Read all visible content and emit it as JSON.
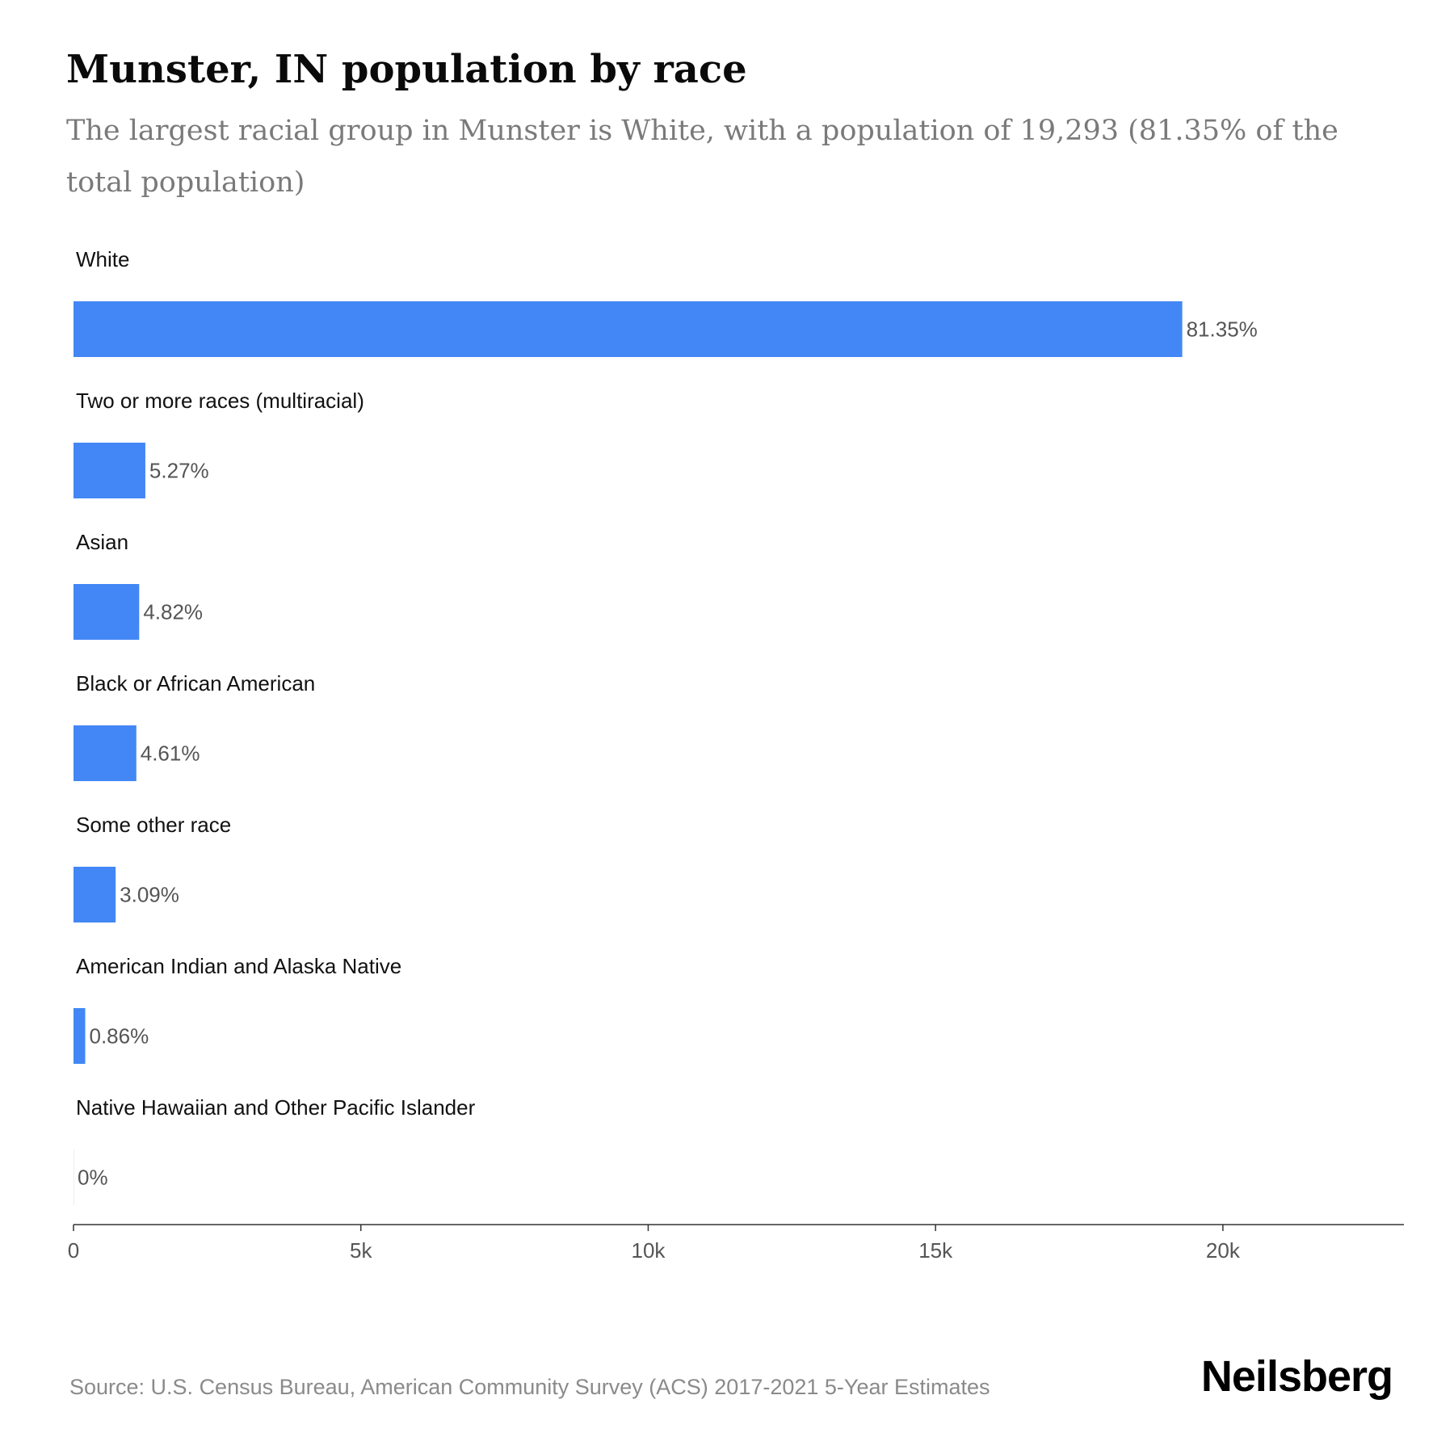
{
  "header": {
    "title": "Munster, IN population by race",
    "subtitle": "The largest racial group in Munster is White, with a population of 19,293 (81.35% of the total population)"
  },
  "footer": {
    "source": "Source: U.S. Census Bureau, American Community Survey (ACS) 2017-2021 5-Year Estimates",
    "brand": "Neilsberg"
  },
  "chart_data": {
    "type": "bar",
    "orientation": "horizontal",
    "title": "Munster, IN population by race",
    "subtitle": "The largest racial group in Munster is White, with a population of 19,293 (81.35% of the total population)",
    "categories": [
      "White",
      "Two or more races (multiracial)",
      "Asian",
      "Black or African American",
      "Some other race",
      "American Indian and Alaska Native",
      "Native Hawaiian and Other Pacific Islander"
    ],
    "values": [
      19293,
      1250,
      1143,
      1093,
      733,
      204,
      0
    ],
    "data_labels": [
      "81.35%",
      "5.27%",
      "4.82%",
      "4.61%",
      "3.09%",
      "0.86%",
      "0%"
    ],
    "x_ticks": [
      0,
      5000,
      10000,
      15000,
      20000
    ],
    "x_tick_labels": [
      "0",
      "5k",
      "10k",
      "15k",
      "20k"
    ],
    "xlim": [
      0,
      23150
    ],
    "xlabel": "",
    "ylabel": "",
    "grid": false,
    "legend": "none",
    "bar_color": "#4287f5"
  }
}
